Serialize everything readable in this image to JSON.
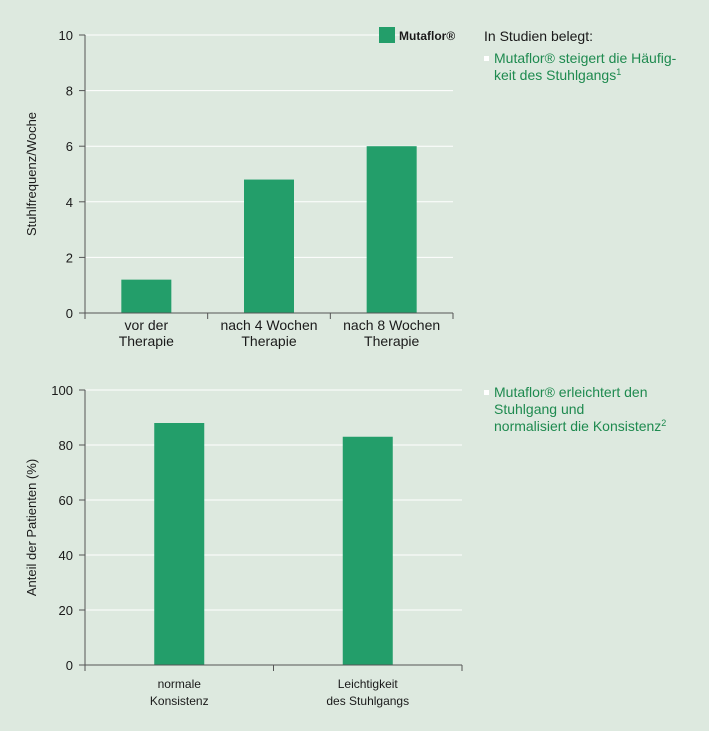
{
  "colors": {
    "bar": "#239e6a",
    "background": "#dde9df",
    "accent_text": "#1e8a4f"
  },
  "chart_data": [
    {
      "type": "bar",
      "title": "",
      "ylabel": "Stuhlfrequenz/Woche",
      "xlabel": "",
      "ylim": [
        0,
        10
      ],
      "yticks": [
        0,
        2,
        4,
        6,
        8,
        10
      ],
      "categories": [
        [
          "vor der",
          "Therapie"
        ],
        [
          "nach 4 Wochen",
          "Therapie"
        ],
        [
          "nach 8 Wochen",
          "Therapie"
        ]
      ],
      "series": [
        {
          "name": "Mutaflor®",
          "values": [
            1.2,
            4.8,
            6.0
          ]
        }
      ],
      "legend": {
        "label": "Mutaflor®",
        "position": "top-right"
      },
      "grid": true
    },
    {
      "type": "bar",
      "title": "",
      "ylabel": "Anteil der Patienten (%)",
      "xlabel": "",
      "ylim": [
        0,
        100
      ],
      "yticks": [
        0,
        20,
        40,
        60,
        80,
        100
      ],
      "categories": [
        [
          "normale",
          "Konsistenz"
        ],
        [
          "Leichtigkeit",
          "des Stuhlgangs"
        ]
      ],
      "series": [
        {
          "name": "Mutaflor®",
          "values": [
            88,
            83
          ]
        }
      ],
      "grid": true
    }
  ],
  "notes": {
    "heading": "In Studien belegt:",
    "bullet1": {
      "line1": "Mutaflor® steigert die Häufig-",
      "line2": "keit des Stuhlgangs",
      "sup": "1"
    },
    "bullet2": {
      "line1": "Mutaflor® erleichtert den",
      "line2": "Stuhlgang und",
      "line3": "normalisiert die Konsistenz",
      "sup": "2"
    }
  }
}
